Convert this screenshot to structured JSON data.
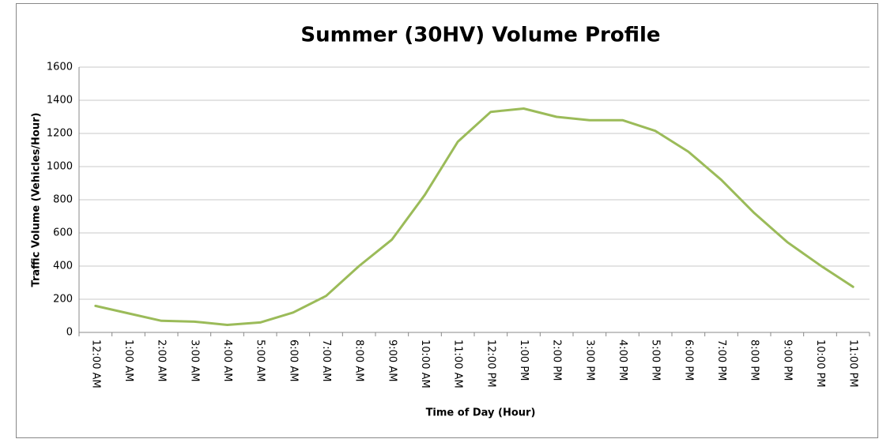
{
  "chart_data": {
    "type": "line",
    "title": "Summer (30HV) Volume Profile",
    "x_label": "Time of Day (Hour)",
    "y_label": "Traffic Volume (Vehicles/Hour)",
    "categories": [
      "12:00 AM",
      "1:00 AM",
      "2:00 AM",
      "3:00 AM",
      "4:00 AM",
      "5:00 AM",
      "6:00 AM",
      "7:00 AM",
      "8:00 AM",
      "9:00 AM",
      "10:00 AM",
      "11:00 AM",
      "12:00 PM",
      "1:00 PM",
      "2:00 PM",
      "3:00 PM",
      "4:00 PM",
      "5:00 PM",
      "6:00 PM",
      "7:00 PM",
      "8:00 PM",
      "9:00 PM",
      "10:00 PM",
      "11:00 PM"
    ],
    "values": [
      160,
      115,
      70,
      65,
      45,
      60,
      120,
      220,
      400,
      560,
      830,
      1150,
      1330,
      1350,
      1300,
      1280,
      1280,
      1215,
      1090,
      920,
      720,
      545,
      405,
      275
    ],
    "color": "#9bbb59",
    "ylim": [
      0,
      1600
    ],
    "yticks": [
      0,
      200,
      400,
      600,
      800,
      1000,
      1200,
      1400,
      1600
    ],
    "grid": true
  }
}
